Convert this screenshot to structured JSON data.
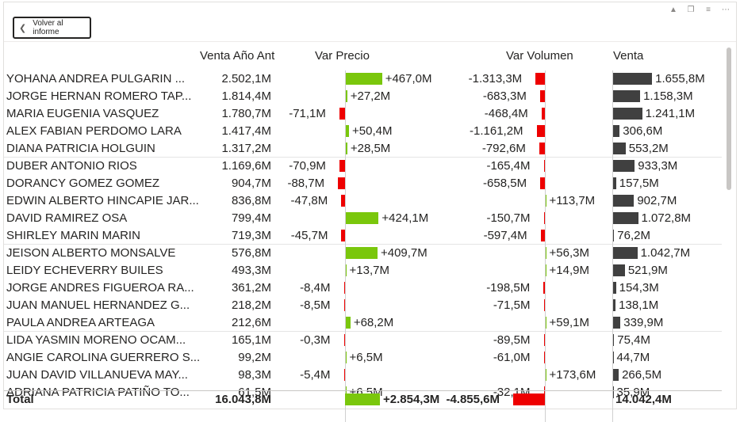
{
  "back_button": {
    "label": "Volver al informe"
  },
  "colors": {
    "positive": "#7ac70c",
    "negative": "#ee0000",
    "venta": "#404040"
  },
  "headers": {
    "venta_ano_ant": "Venta Año Ant",
    "var_precio": "Var Precio",
    "var_volumen": "Var Volumen",
    "venta": "Venta"
  },
  "rows": [
    {
      "name": "YOHANA ANDREA PULGARIN ...",
      "prev": "2.502,1M",
      "precio": "+467,0M",
      "precio_val": 467.0,
      "volumen": "-1.313,3M",
      "volumen_val": -1313.3,
      "venta": "1.655,8M",
      "venta_val": 1655.8
    },
    {
      "name": "JORGE HERNAN ROMERO TAP...",
      "prev": "1.814,4M",
      "precio": "+27,2M",
      "precio_val": 27.2,
      "volumen": "-683,3M",
      "volumen_val": -683.3,
      "venta": "1.158,3M",
      "venta_val": 1158.3
    },
    {
      "name": "MARIA EUGENIA VASQUEZ",
      "prev": "1.780,7M",
      "precio": "-71,1M",
      "precio_val": -71.1,
      "volumen": "-468,4M",
      "volumen_val": -468.4,
      "venta": "1.241,1M",
      "venta_val": 1241.1
    },
    {
      "name": "ALEX FABIAN PERDOMO LARA",
      "prev": "1.417,4M",
      "precio": "+50,4M",
      "precio_val": 50.4,
      "volumen": "-1.161,2M",
      "volumen_val": -1161.2,
      "venta": "306,6M",
      "venta_val": 306.6
    },
    {
      "name": "DIANA PATRICIA HOLGUIN",
      "prev": "1.317,2M",
      "precio": "+28,5M",
      "precio_val": 28.5,
      "volumen": "-792,6M",
      "volumen_val": -792.6,
      "venta": "553,2M",
      "venta_val": 553.2
    },
    {
      "name": "DUBER ANTONIO RIOS",
      "prev": "1.169,6M",
      "precio": "-70,9M",
      "precio_val": -70.9,
      "volumen": "-165,4M",
      "volumen_val": -165.4,
      "venta": "933,3M",
      "venta_val": 933.3
    },
    {
      "name": "DORANCY GOMEZ GOMEZ",
      "prev": "904,7M",
      "precio": "-88,7M",
      "precio_val": -88.7,
      "volumen": "-658,5M",
      "volumen_val": -658.5,
      "venta": "157,5M",
      "venta_val": 157.5
    },
    {
      "name": "EDWIN ALBERTO HINCAPIE JAR...",
      "prev": "836,8M",
      "precio": "-47,8M",
      "precio_val": -47.8,
      "volumen": "+113,7M",
      "volumen_val": 113.7,
      "venta": "902,7M",
      "venta_val": 902.7
    },
    {
      "name": "DAVID RAMIREZ OSA",
      "prev": "799,4M",
      "precio": "+424,1M",
      "precio_val": 424.1,
      "volumen": "-150,7M",
      "volumen_val": -150.7,
      "venta": "1.072,8M",
      "venta_val": 1072.8
    },
    {
      "name": "SHIRLEY MARIN MARIN",
      "prev": "719,3M",
      "precio": "-45,7M",
      "precio_val": -45.7,
      "volumen": "-597,4M",
      "volumen_val": -597.4,
      "venta": "76,2M",
      "venta_val": 76.2
    },
    {
      "name": "JEISON ALBERTO MONSALVE",
      "prev": "576,8M",
      "precio": "+409,7M",
      "precio_val": 409.7,
      "volumen": "+56,3M",
      "volumen_val": 56.3,
      "venta": "1.042,7M",
      "venta_val": 1042.7
    },
    {
      "name": "LEIDY ECHEVERRY BUILES",
      "prev": "493,3M",
      "precio": "+13,7M",
      "precio_val": 13.7,
      "volumen": "+14,9M",
      "volumen_val": 14.9,
      "venta": "521,9M",
      "venta_val": 521.9
    },
    {
      "name": "JORGE ANDRES FIGUEROA RA...",
      "prev": "361,2M",
      "precio": "-8,4M",
      "precio_val": -8.4,
      "volumen": "-198,5M",
      "volumen_val": -198.5,
      "venta": "154,3M",
      "venta_val": 154.3
    },
    {
      "name": "JUAN MANUEL HERNANDEZ G...",
      "prev": "218,2M",
      "precio": "-8,5M",
      "precio_val": -8.5,
      "volumen": "-71,5M",
      "volumen_val": -71.5,
      "venta": "138,1M",
      "venta_val": 138.1
    },
    {
      "name": "PAULA ANDREA ARTEAGA",
      "prev": "212,6M",
      "precio": "+68,2M",
      "precio_val": 68.2,
      "volumen": "+59,1M",
      "volumen_val": 59.1,
      "venta": "339,9M",
      "venta_val": 339.9
    },
    {
      "name": "LIDA YASMIN MORENO OCAM...",
      "prev": "165,1M",
      "precio": "-0,3M",
      "precio_val": -0.3,
      "volumen": "-89,5M",
      "volumen_val": -89.5,
      "venta": "75,4M",
      "venta_val": 75.4
    },
    {
      "name": "ANGIE CAROLINA GUERRERO S...",
      "prev": "99,2M",
      "precio": "+6,5M",
      "precio_val": 6.5,
      "volumen": "-61,0M",
      "volumen_val": -61.0,
      "venta": "44,7M",
      "venta_val": 44.7
    },
    {
      "name": "JUAN DAVID VILLANUEVA MAY...",
      "prev": "98,3M",
      "precio": "-5,4M",
      "precio_val": -5.4,
      "volumen": "+173,6M",
      "volumen_val": 173.6,
      "venta": "266,5M",
      "venta_val": 266.5
    },
    {
      "name": "ADRIANA PATRICIA PATIÑO TO...",
      "prev": "61,5M",
      "precio": "+6,5M",
      "precio_val": 6.5,
      "volumen": "-32,1M",
      "volumen_val": -32.1,
      "venta": "35,9M",
      "venta_val": 35.9
    }
  ],
  "total": {
    "label": "Total",
    "prev": "16.043,8M",
    "precio": "+2.854,3M",
    "precio_val": 2854.3,
    "volumen": "-4.855,6M",
    "volumen_val": -4855.6,
    "venta": "14.042,4M"
  }
}
